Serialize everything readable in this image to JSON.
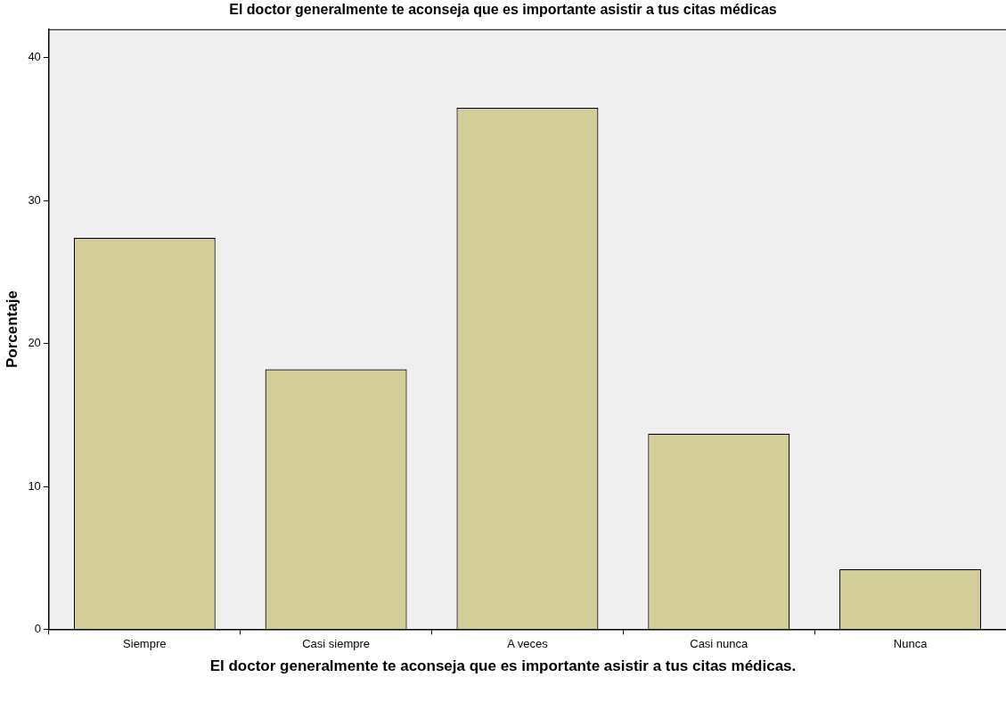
{
  "chart_data": {
    "type": "bar",
    "title": "El doctor generalmente te aconseja que es importante asistir a tus citas médicas",
    "xlabel": "El doctor generalmente te aconseja que es importante asistir a tus citas médicas.",
    "ylabel": "Porcentaje",
    "categories": [
      "Siempre",
      "Casi siempre",
      "A veces",
      "Casi nunca",
      "Nunca"
    ],
    "values": [
      27.4,
      18.2,
      36.5,
      13.7,
      4.2
    ],
    "color": "#d3cd97",
    "ylim": [
      0,
      42
    ],
    "yticks": [
      0,
      10,
      20,
      30,
      40
    ],
    "grid": false
  }
}
